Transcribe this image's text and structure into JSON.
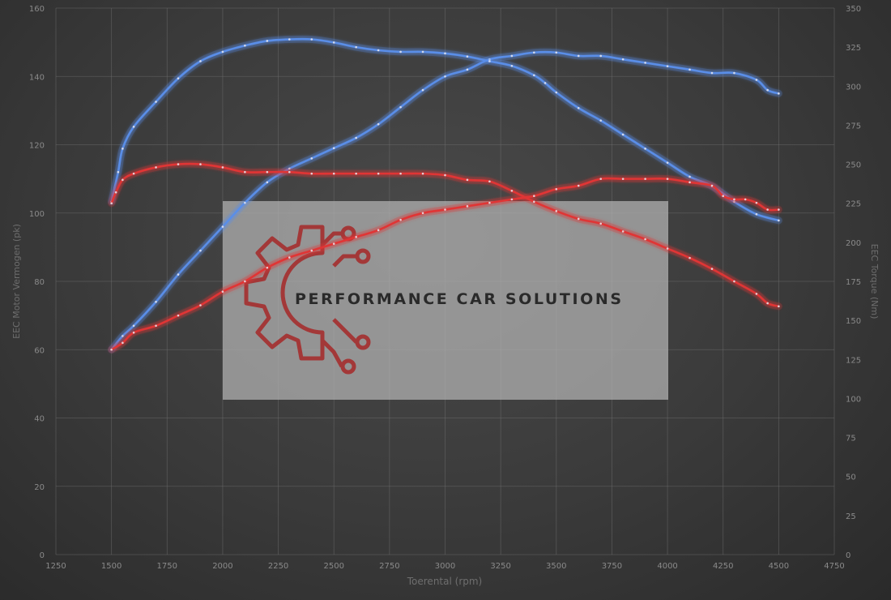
{
  "chart_data": {
    "type": "line",
    "xlabel": "Toerental (rpm)",
    "ylabel_left": "EEC Motor Vermogen (pk)",
    "ylabel_right": "EEC Torque (Nm)",
    "xlim": [
      1250,
      4750
    ],
    "ylim_left": [
      0,
      160
    ],
    "ylim_right": [
      0,
      350
    ],
    "x_ticks": [
      1250,
      1500,
      1750,
      2000,
      2250,
      2500,
      2750,
      3000,
      3250,
      3500,
      3750,
      4000,
      4250,
      4500,
      4750
    ],
    "y_ticks_left": [
      0,
      20,
      40,
      60,
      80,
      100,
      120,
      140,
      160
    ],
    "y_ticks_right": [
      0,
      25,
      50,
      75,
      100,
      125,
      150,
      175,
      200,
      225,
      250,
      275,
      300,
      325,
      350
    ],
    "grid": true,
    "series": [
      {
        "axis": "left",
        "color": "#5a8ee8",
        "x": [
          1500,
          1550,
          1600,
          1700,
          1800,
          1900,
          2000,
          2100,
          2200,
          2300,
          2400,
          2500,
          2600,
          2700,
          2800,
          2900,
          3000,
          3100,
          3200,
          3300,
          3400,
          3500,
          3600,
          3700,
          3800,
          3900,
          4000,
          4100,
          4200,
          4300,
          4400,
          4450,
          4500
        ],
        "y": [
          60,
          64,
          67,
          74,
          82,
          89,
          96,
          103,
          109,
          113,
          116,
          119,
          122,
          126,
          131,
          136,
          140,
          142,
          145,
          146,
          147,
          147,
          146,
          146,
          145,
          144,
          143,
          142,
          141,
          141,
          139,
          136,
          135
        ]
      },
      {
        "axis": "right",
        "color": "#5a8ee8",
        "x": [
          1500,
          1530,
          1550,
          1600,
          1700,
          1800,
          1900,
          2000,
          2100,
          2200,
          2300,
          2400,
          2500,
          2600,
          2700,
          2800,
          2900,
          3000,
          3100,
          3200,
          3300,
          3400,
          3450,
          3500,
          3600,
          3700,
          3800,
          3900,
          4000,
          4100,
          4200,
          4300,
          4400,
          4500
        ],
        "y": [
          226,
          245,
          260,
          274,
          290,
          305,
          316,
          322,
          326,
          329,
          330,
          330,
          328,
          325,
          323,
          322,
          322,
          321,
          319,
          316,
          313,
          307,
          302,
          296,
          286,
          278,
          269,
          260,
          251,
          242,
          236,
          226,
          218,
          214
        ]
      },
      {
        "axis": "left",
        "color": "#e03535",
        "x": [
          1500,
          1550,
          1600,
          1700,
          1800,
          1900,
          2000,
          2100,
          2200,
          2300,
          2400,
          2500,
          2600,
          2700,
          2800,
          2900,
          3000,
          3100,
          3200,
          3300,
          3400,
          3500,
          3600,
          3700,
          3800,
          3900,
          4000,
          4100,
          4200,
          4250,
          4300,
          4350,
          4400,
          4450,
          4500
        ],
        "y": [
          60,
          62,
          65,
          67,
          70,
          73,
          77,
          80,
          84,
          87,
          89,
          91,
          93,
          95,
          98,
          100,
          101,
          102,
          103,
          104,
          105,
          107,
          108,
          110,
          110,
          110,
          110,
          109,
          108,
          105,
          104,
          104,
          103,
          101,
          101
        ]
      },
      {
        "axis": "right",
        "color": "#e03535",
        "x": [
          1500,
          1520,
          1550,
          1600,
          1700,
          1800,
          1900,
          2000,
          2100,
          2200,
          2300,
          2400,
          2500,
          2600,
          2700,
          2800,
          2900,
          3000,
          3100,
          3200,
          3300,
          3400,
          3500,
          3600,
          3700,
          3800,
          3900,
          4000,
          4100,
          4200,
          4300,
          4400,
          4450,
          4500
        ],
        "y": [
          225,
          232,
          240,
          244,
          248,
          250,
          250,
          248,
          245,
          245,
          245,
          244,
          244,
          244,
          244,
          244,
          244,
          243,
          240,
          239,
          233,
          226,
          220,
          215,
          212,
          207,
          202,
          196,
          190,
          183,
          175,
          167,
          161,
          159
        ]
      }
    ]
  },
  "watermark": {
    "text": "PERFORMANCE CAR SOLUTIONS",
    "logo_color": "#a33838"
  }
}
